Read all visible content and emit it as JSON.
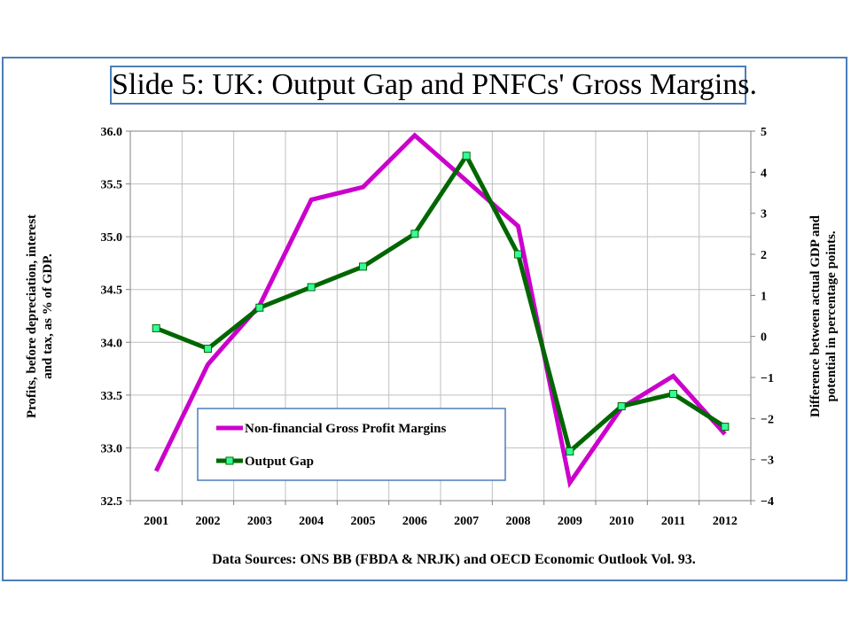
{
  "slide": {
    "title": "Slide 5: UK: Output Gap and PNFCs' Gross Margins.",
    "source": "Data Sources: ONS BB (FBDA & NRJK) and OECD Economic Outlook Vol. 93."
  },
  "colors": {
    "frame": "#4a7ebb",
    "margins": "#cc00cc",
    "gap": "#006600",
    "marker": "#33ff99"
  },
  "chart_data": {
    "type": "line",
    "categories": [
      "2001",
      "2002",
      "2003",
      "2004",
      "2005",
      "2006",
      "2007",
      "2008",
      "2009",
      "2010",
      "2011",
      "2012"
    ],
    "ylabel": "Profits, before depreciation, interest and tax, as % of GDP.",
    "y2label": "Difference between actual GDP and potential in percentage points.",
    "ylim": [
      32.5,
      36.0
    ],
    "y2lim": [
      -4,
      5
    ],
    "yticks": [
      "36.0",
      "35.5",
      "35.0",
      "34.5",
      "34.0",
      "33.5",
      "33.0",
      "32.5"
    ],
    "y2ticks": [
      "5",
      "4",
      "3",
      "2",
      "1",
      "0",
      "−1",
      "−2",
      "−3",
      "−4"
    ],
    "grid": true,
    "legend_position": "bottom-left",
    "series": [
      {
        "name": "Non-financial Gross Profit Margins",
        "axis": "left",
        "marker": "none",
        "values": [
          32.78,
          33.79,
          34.35,
          35.35,
          35.47,
          35.96,
          35.53,
          35.1,
          32.67,
          33.38,
          33.68,
          33.13
        ]
      },
      {
        "name": "Output Gap",
        "axis": "right",
        "marker": "square",
        "values": [
          0.2,
          -0.3,
          0.7,
          1.2,
          1.7,
          2.5,
          4.4,
          2.0,
          -2.8,
          -1.7,
          -1.4,
          -2.2
        ]
      }
    ]
  }
}
